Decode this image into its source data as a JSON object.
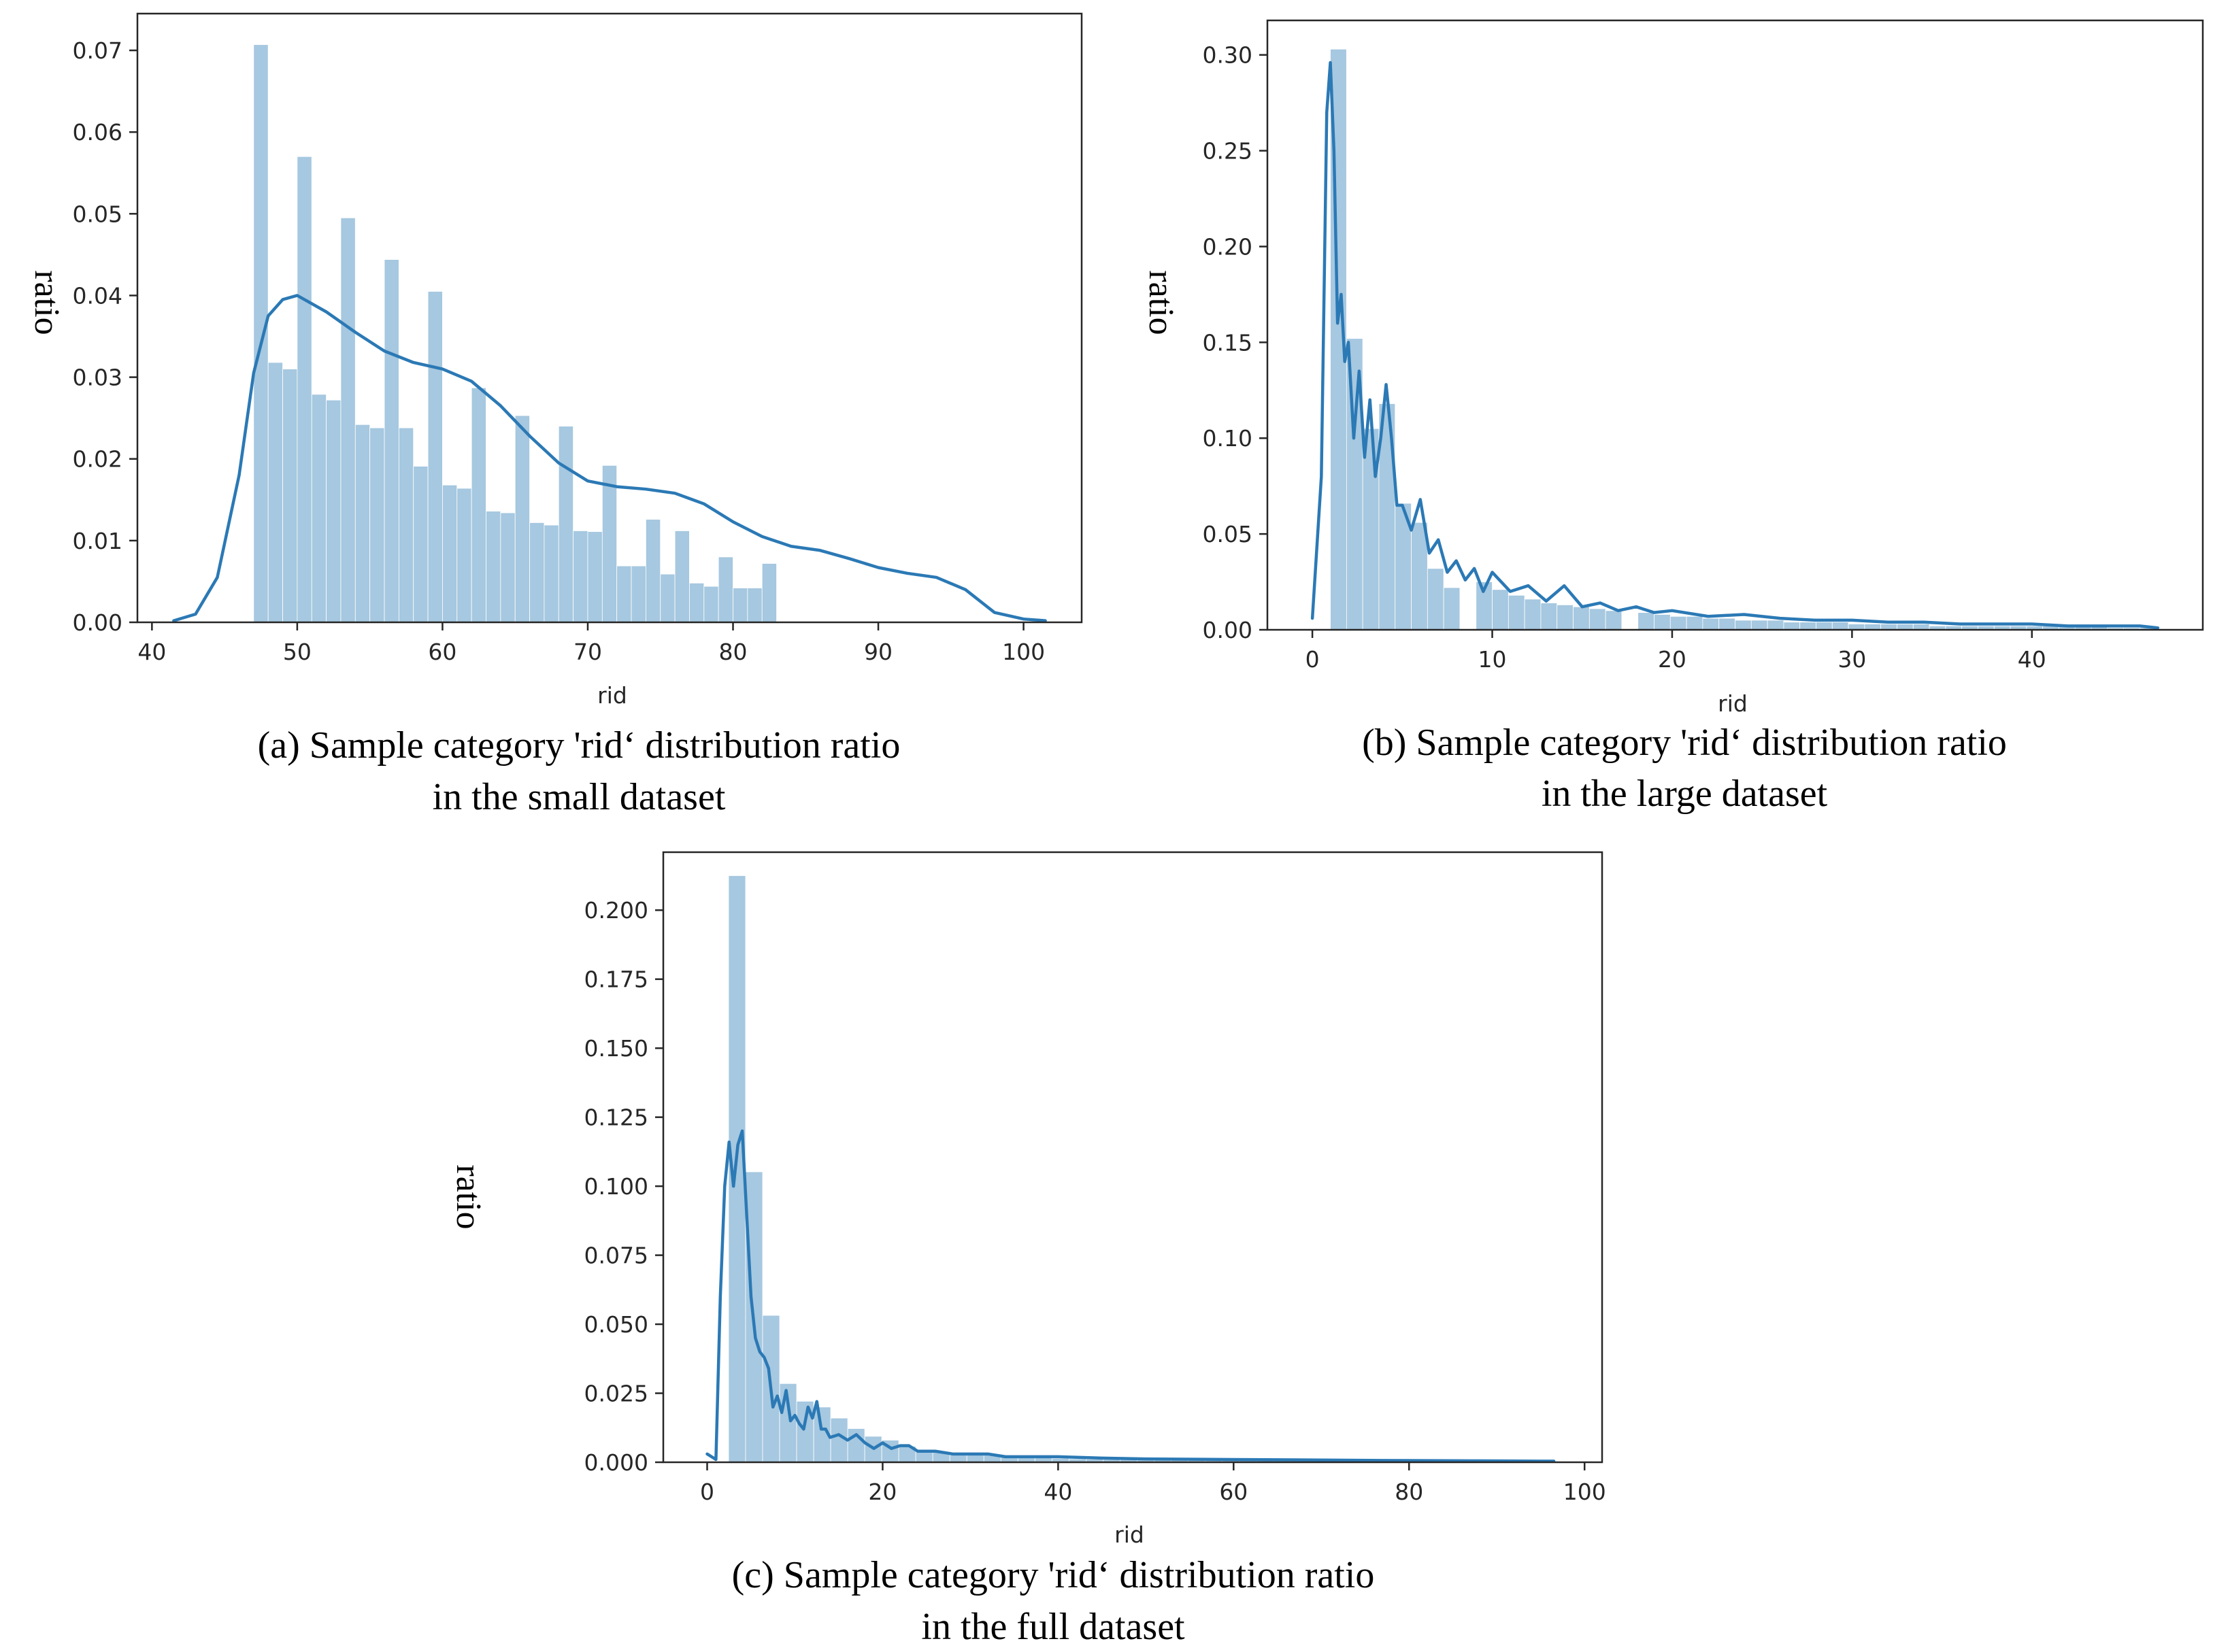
{
  "figure": {
    "colors": {
      "bar": "#a6c8e0",
      "kde": "#2b79b5",
      "axis": "#262626",
      "text": "#000000"
    }
  },
  "chart_data": [
    {
      "id": "a",
      "type": "bar",
      "title": "",
      "xlabel": "rid",
      "ylabel": "ratio",
      "caption_line1": "(a) Sample category 'rid‘ distribution ratio",
      "caption_line2": "in the small dataset",
      "xlim": [
        39,
        104
      ],
      "ylim": [
        0,
        0.0745
      ],
      "xticks": [
        40,
        50,
        60,
        70,
        80,
        90,
        100
      ],
      "yticks": [
        0.0,
        0.01,
        0.02,
        0.03,
        0.04,
        0.05,
        0.06,
        0.07
      ],
      "ytick_labels": [
        "0.00",
        "0.01",
        "0.02",
        "0.03",
        "0.04",
        "0.05",
        "0.06",
        "0.07"
      ],
      "grid": false,
      "bins": {
        "start": 47,
        "width": 1.0,
        "values": [
          0.0707,
          0.0318,
          0.031,
          0.057,
          0.0279,
          0.0272,
          0.0495,
          0.0242,
          0.0238,
          0.0444,
          0.0238,
          0.0191,
          0.0405,
          0.0168,
          0.0164,
          0.0287,
          0.0136,
          0.0134,
          0.0253,
          0.0122,
          0.0119,
          0.024,
          0.0112,
          0.0111,
          0.0192,
          0.0069,
          0.0069,
          0.0126,
          0.0059,
          0.0112,
          0.0048,
          0.0044,
          0.008,
          0.0042,
          0.0042,
          0.0072
        ]
      },
      "kde": {
        "x": [
          41.5,
          43,
          44.5,
          46,
          47,
          48,
          49,
          50,
          52,
          54,
          56,
          58,
          60,
          62,
          64,
          66,
          68,
          70,
          72,
          74,
          76,
          78,
          80,
          82,
          84,
          86,
          88,
          90,
          92,
          94,
          96,
          98,
          100,
          101.5
        ],
        "y": [
          0.0002,
          0.001,
          0.0055,
          0.018,
          0.0305,
          0.0375,
          0.0395,
          0.04,
          0.038,
          0.0355,
          0.0332,
          0.0318,
          0.031,
          0.0295,
          0.0265,
          0.0228,
          0.0195,
          0.0173,
          0.0166,
          0.0163,
          0.0158,
          0.0145,
          0.0123,
          0.0105,
          0.0093,
          0.0088,
          0.0078,
          0.0067,
          0.006,
          0.0055,
          0.004,
          0.0012,
          0.0004,
          0.0002
        ]
      }
    },
    {
      "id": "b",
      "type": "bar",
      "title": "",
      "xlabel": "rid",
      "ylabel": "ratio",
      "caption_line1": "(b) Sample category 'rid‘ distribution ratio",
      "caption_line2": "in the large dataset",
      "xlim": [
        -2.5,
        49.5
      ],
      "ylim": [
        0,
        0.318
      ],
      "xticks": [
        0,
        10,
        20,
        30,
        40
      ],
      "yticks": [
        0.0,
        0.05,
        0.1,
        0.15,
        0.2,
        0.25,
        0.3
      ],
      "ytick_labels": [
        "0.00",
        "0.05",
        "0.10",
        "0.15",
        "0.20",
        "0.25",
        "0.30"
      ],
      "grid": false,
      "bins": {
        "start": 1,
        "width": 0.9,
        "values": [
          0.303,
          0.152,
          0.105,
          0.118,
          0.066,
          0.056,
          0.032,
          0.022,
          0.0,
          0.025,
          0.021,
          0.018,
          0.016,
          0.014,
          0.013,
          0.012,
          0.011,
          0.01,
          0.0,
          0.009,
          0.008,
          0.007,
          0.007,
          0.006,
          0.006,
          0.005,
          0.005,
          0.005,
          0.004,
          0.004,
          0.004,
          0.004,
          0.003,
          0.003,
          0.003,
          0.003,
          0.003,
          0.002,
          0.002,
          0.002,
          0.002,
          0.002,
          0.002,
          0.002,
          0.002,
          0.002,
          0.002,
          0.002,
          0.001,
          0.001,
          0.001
        ]
      },
      "kde": {
        "x": [
          0,
          0.5,
          0.8,
          1.0,
          1.2,
          1.4,
          1.6,
          1.8,
          2.0,
          2.3,
          2.6,
          2.9,
          3.2,
          3.5,
          3.8,
          4.1,
          4.4,
          4.7,
          5.0,
          5.5,
          6,
          6.5,
          7,
          7.5,
          8,
          8.5,
          9,
          9.5,
          10,
          11,
          12,
          13,
          14,
          15,
          16,
          17,
          18,
          19,
          20,
          22,
          24,
          26,
          28,
          30,
          32,
          34,
          36,
          38,
          40,
          42,
          44,
          46,
          47
        ],
        "y": [
          0.006,
          0.08,
          0.27,
          0.296,
          0.25,
          0.16,
          0.175,
          0.14,
          0.15,
          0.1,
          0.135,
          0.09,
          0.12,
          0.08,
          0.1,
          0.128,
          0.1,
          0.065,
          0.065,
          0.052,
          0.068,
          0.04,
          0.047,
          0.03,
          0.036,
          0.026,
          0.032,
          0.02,
          0.03,
          0.02,
          0.023,
          0.015,
          0.023,
          0.012,
          0.014,
          0.01,
          0.012,
          0.009,
          0.01,
          0.007,
          0.008,
          0.006,
          0.005,
          0.005,
          0.004,
          0.004,
          0.003,
          0.003,
          0.003,
          0.002,
          0.002,
          0.002,
          0.001
        ]
      }
    },
    {
      "id": "c",
      "type": "bar",
      "title": "",
      "xlabel": "rid",
      "ylabel": "ratio",
      "caption_line1": "(c) Sample category 'rid‘ distribution ratio",
      "caption_line2": "in the full dataset",
      "xlim": [
        -5,
        102
      ],
      "ylim": [
        0,
        0.221
      ],
      "xticks": [
        0,
        20,
        40,
        60,
        80,
        100
      ],
      "yticks": [
        0.0,
        0.025,
        0.05,
        0.075,
        0.1,
        0.125,
        0.15,
        0.175,
        0.2
      ],
      "ytick_labels": [
        "0.000",
        "0.025",
        "0.050",
        "0.075",
        "0.100",
        "0.125",
        "0.150",
        "0.175",
        "0.200"
      ],
      "grid": false,
      "bins": {
        "start": 0.5,
        "width": 1.94,
        "values": [
          0.0,
          0.2125,
          0.1052,
          0.0532,
          0.0285,
          0.0221,
          0.02,
          0.016,
          0.0122,
          0.0094,
          0.008,
          0.0058,
          0.0046,
          0.0038,
          0.0034,
          0.003,
          0.0026,
          0.0022,
          0.0018,
          0.0016,
          0.0014,
          0.0012,
          0.0011,
          0.001,
          0.0009,
          0.0008,
          0.0008,
          0.0007,
          0.0007,
          0.0006,
          0.0006,
          0.0006,
          0.0005,
          0.0005,
          0.0005,
          0.0005,
          0.0004,
          0.0004,
          0.0004,
          0.0004,
          0.0004,
          0.0004,
          0.0003,
          0.0003,
          0.0003,
          0.0003,
          0.0003,
          0.0003,
          0.0003
        ]
      },
      "kde": {
        "x": [
          0,
          0.5,
          1,
          1.5,
          2,
          2.5,
          3,
          3.5,
          4,
          4.5,
          5,
          5.5,
          6,
          6.5,
          7,
          7.5,
          8,
          8.5,
          9,
          9.5,
          10,
          10.5,
          11,
          11.5,
          12,
          12.5,
          13,
          13.5,
          14,
          15,
          16,
          17,
          18,
          19,
          20,
          21,
          22,
          23,
          24,
          26,
          28,
          30,
          32,
          34,
          36,
          38,
          40,
          45,
          50,
          60,
          70,
          80,
          90,
          95,
          96.5
        ],
        "y": [
          0.003,
          0.002,
          0.001,
          0.06,
          0.1,
          0.116,
          0.1,
          0.115,
          0.12,
          0.09,
          0.06,
          0.045,
          0.04,
          0.038,
          0.034,
          0.02,
          0.024,
          0.018,
          0.026,
          0.015,
          0.017,
          0.014,
          0.012,
          0.02,
          0.016,
          0.022,
          0.012,
          0.012,
          0.009,
          0.01,
          0.008,
          0.01,
          0.007,
          0.005,
          0.007,
          0.005,
          0.006,
          0.006,
          0.004,
          0.004,
          0.003,
          0.003,
          0.003,
          0.002,
          0.002,
          0.002,
          0.002,
          0.0015,
          0.0012,
          0.001,
          0.0008,
          0.0006,
          0.0005,
          0.0004,
          0.0004
        ]
      }
    }
  ]
}
